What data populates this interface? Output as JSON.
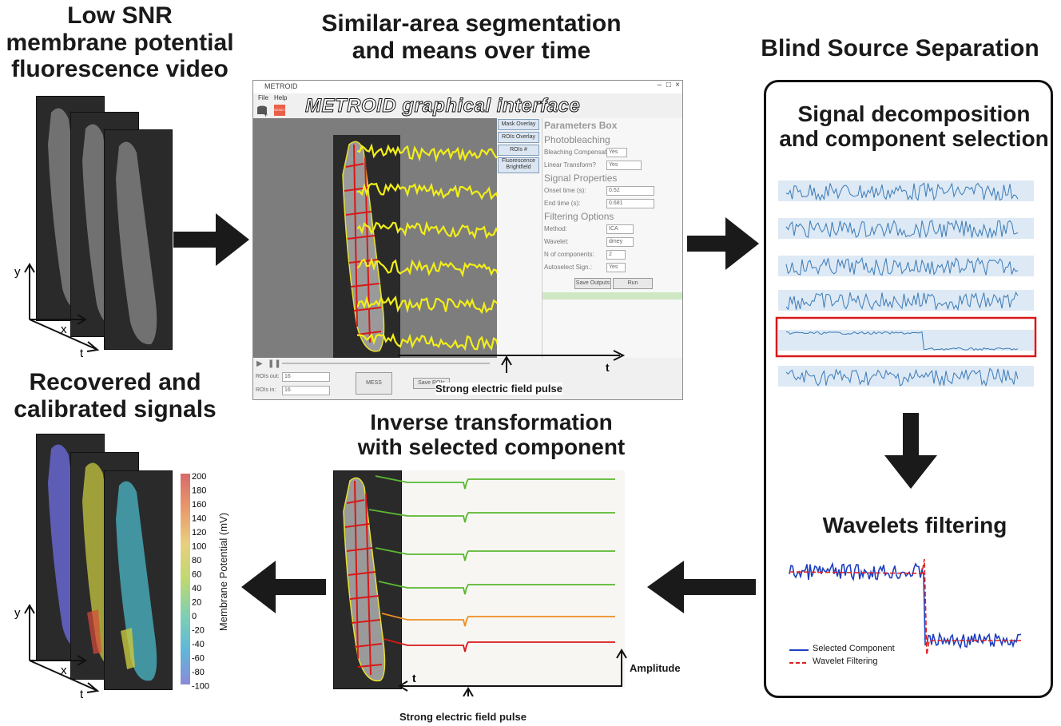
{
  "headings": {
    "input": "Low SNR\nmembrane potential\nfluorescence video",
    "segmentation": "Similar-area segmentation\nand means over time",
    "bss": "Blind Source Separation",
    "decomposition": "Signal decomposition\nand component selection",
    "wavelets": "Wavelets filtering",
    "inverse": "Inverse transformation\nwith selected component",
    "recovered": "Recovered and\ncalibrated signals"
  },
  "gui": {
    "overlay_title": "METROID graphical interface",
    "window_title": "METROID",
    "menu": [
      "File",
      "Help"
    ],
    "reset_label": "RESET",
    "buttons": [
      "Mask Overlay",
      "ROIs Overlay",
      "ROIs #",
      "Fluorescence\nBrightfield"
    ],
    "params_title": "Parameters Box",
    "sections": {
      "photobleaching": "Photobleaching",
      "signal": "Signal Properties",
      "filtering": "Filtering Options"
    },
    "labels": {
      "bleach_comp": "Bleaching Compensation?",
      "bleach_val": "Yes",
      "linear": "Linear Transform?",
      "linear_val": "Yes",
      "onset": "Onset time (s):",
      "onset_val": "0.52",
      "end": "End time (s):",
      "end_val": "0.681",
      "method": "Method:",
      "method_val": "ICA",
      "wavelet": "Wavelet:",
      "wavelet_val": "dmey",
      "ncomp": "N of components:",
      "ncomp_val": "2",
      "autoselect": "Autoselect Sign.:",
      "autoselect_val": "Yes"
    },
    "save_outputs": "Save Outputs",
    "run": "Run",
    "rois_out_label": "ROIs out:",
    "rois_out_val": "16",
    "rois_in_label": "ROIs in:",
    "rois_in_val": "16",
    "mess": "MESS",
    "save_roi": "Save ROIs",
    "t_label": "t",
    "pulse_label": "Strong electric field pulse"
  },
  "inverse_panel": {
    "t_label": "t",
    "amplitude_label": "Amplitude",
    "pulse_label": "Strong electric field pulse"
  },
  "wavelet_legend": {
    "series": [
      "Selected Component",
      "Wavelet Filtering"
    ],
    "colors": [
      "#1f3fbf",
      "#e02020"
    ]
  },
  "axes_labels": {
    "y": "y",
    "x": "x",
    "t": "t"
  },
  "colorbar": {
    "label": "Membrane Potential (mV)",
    "ticks": [
      "200",
      "180",
      "160",
      "140",
      "120",
      "100",
      "80",
      "60",
      "40",
      "20",
      "0",
      "-20",
      "-40",
      "-60",
      "-80",
      "-100"
    ]
  }
}
